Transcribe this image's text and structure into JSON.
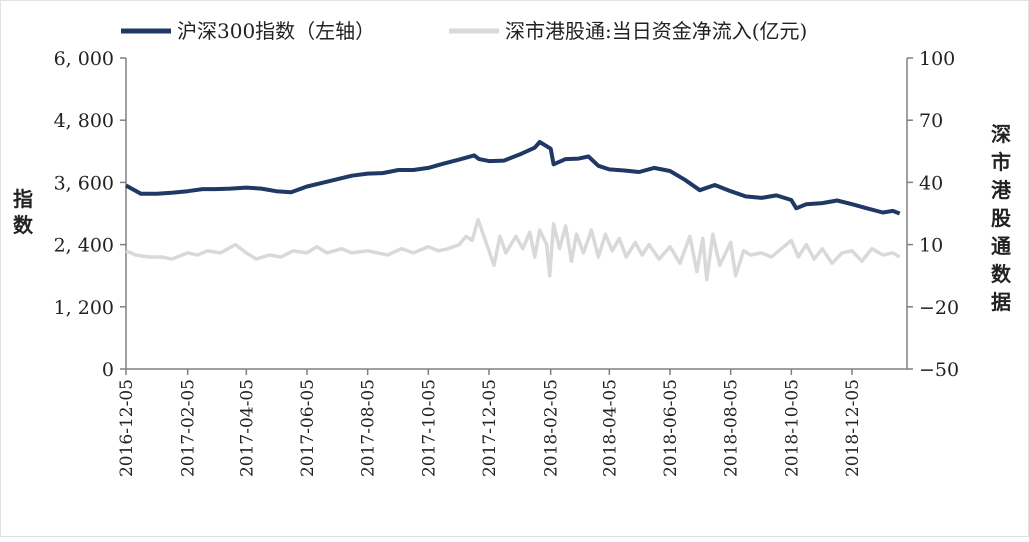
{
  "legend": {
    "series_left": "沪深300指数（左轴）",
    "series_right": "深市港股通:当日资金净流入(亿元)"
  },
  "axes": {
    "left_label": "指数",
    "right_label": "深市港股通数据"
  },
  "colors": {
    "index_line": "#1f3864",
    "flow_line": "#d9d9d9",
    "axis": "#808080"
  },
  "chart_data": {
    "type": "line",
    "title": "",
    "x_start": "2016-12-05",
    "x_end": "2019-01-22",
    "x_ticks": [
      "2016-12-05",
      "2017-02-05",
      "2017-04-05",
      "2017-06-05",
      "2017-08-05",
      "2017-10-05",
      "2017-12-05",
      "2018-02-05",
      "2018-04-05",
      "2018-06-05",
      "2018-08-05",
      "2018-10-05",
      "2018-12-05"
    ],
    "y_left": {
      "min": 0,
      "max": 6000,
      "ticks": [
        0,
        1200,
        2400,
        3600,
        4800,
        6000
      ],
      "tick_labels": [
        "0",
        "1, 200",
        "2, 400",
        "3, 600",
        "4, 800",
        "6, 000"
      ]
    },
    "y_right": {
      "min": -50,
      "max": 100,
      "ticks": [
        -50,
        -20,
        10,
        40,
        70,
        100
      ],
      "tick_labels": [
        "−50",
        "−20",
        "10",
        "40",
        "70",
        "100"
      ]
    },
    "series": [
      {
        "name": "沪深300指数（左轴）",
        "axis": "left",
        "points": [
          [
            "2016-12-05",
            3540
          ],
          [
            "2016-12-20",
            3380
          ],
          [
            "2017-01-05",
            3380
          ],
          [
            "2017-01-20",
            3400
          ],
          [
            "2017-02-05",
            3430
          ],
          [
            "2017-02-20",
            3470
          ],
          [
            "2017-03-05",
            3470
          ],
          [
            "2017-03-20",
            3480
          ],
          [
            "2017-04-05",
            3500
          ],
          [
            "2017-04-20",
            3480
          ],
          [
            "2017-05-05",
            3430
          ],
          [
            "2017-05-20",
            3410
          ],
          [
            "2017-06-05",
            3520
          ],
          [
            "2017-06-20",
            3590
          ],
          [
            "2017-07-05",
            3660
          ],
          [
            "2017-07-20",
            3730
          ],
          [
            "2017-08-05",
            3770
          ],
          [
            "2017-08-20",
            3780
          ],
          [
            "2017-09-05",
            3840
          ],
          [
            "2017-09-20",
            3840
          ],
          [
            "2017-10-05",
            3880
          ],
          [
            "2017-10-20",
            3960
          ],
          [
            "2017-11-05",
            4040
          ],
          [
            "2017-11-20",
            4120
          ],
          [
            "2017-11-25",
            4050
          ],
          [
            "2017-12-05",
            4010
          ],
          [
            "2017-12-20",
            4020
          ],
          [
            "2018-01-05",
            4140
          ],
          [
            "2018-01-20",
            4270
          ],
          [
            "2018-01-25",
            4380
          ],
          [
            "2018-02-05",
            4250
          ],
          [
            "2018-02-08",
            3950
          ],
          [
            "2018-02-20",
            4050
          ],
          [
            "2018-03-05",
            4060
          ],
          [
            "2018-03-15",
            4100
          ],
          [
            "2018-03-25",
            3920
          ],
          [
            "2018-04-05",
            3850
          ],
          [
            "2018-04-20",
            3830
          ],
          [
            "2018-05-05",
            3800
          ],
          [
            "2018-05-20",
            3880
          ],
          [
            "2018-06-05",
            3820
          ],
          [
            "2018-06-20",
            3650
          ],
          [
            "2018-07-05",
            3450
          ],
          [
            "2018-07-20",
            3550
          ],
          [
            "2018-08-05",
            3430
          ],
          [
            "2018-08-20",
            3330
          ],
          [
            "2018-09-05",
            3300
          ],
          [
            "2018-09-20",
            3350
          ],
          [
            "2018-10-05",
            3260
          ],
          [
            "2018-10-10",
            3100
          ],
          [
            "2018-10-20",
            3180
          ],
          [
            "2018-11-05",
            3200
          ],
          [
            "2018-11-20",
            3250
          ],
          [
            "2018-12-05",
            3180
          ],
          [
            "2018-12-20",
            3100
          ],
          [
            "2019-01-05",
            3020
          ],
          [
            "2019-01-15",
            3050
          ],
          [
            "2019-01-22",
            3000
          ]
        ]
      },
      {
        "name": "深市港股通:当日资金净流入(亿元)",
        "axis": "right",
        "points": [
          [
            "2016-12-05",
            7
          ],
          [
            "2016-12-15",
            5
          ],
          [
            "2016-12-28",
            4
          ],
          [
            "2017-01-10",
            4
          ],
          [
            "2017-01-20",
            3
          ],
          [
            "2017-02-05",
            6
          ],
          [
            "2017-02-15",
            5
          ],
          [
            "2017-02-25",
            7
          ],
          [
            "2017-03-10",
            6
          ],
          [
            "2017-03-25",
            10
          ],
          [
            "2017-04-05",
            6
          ],
          [
            "2017-04-15",
            3
          ],
          [
            "2017-04-28",
            5
          ],
          [
            "2017-05-10",
            4
          ],
          [
            "2017-05-22",
            7
          ],
          [
            "2017-06-05",
            6
          ],
          [
            "2017-06-15",
            9
          ],
          [
            "2017-06-25",
            6
          ],
          [
            "2017-07-10",
            8
          ],
          [
            "2017-07-20",
            6
          ],
          [
            "2017-08-05",
            7
          ],
          [
            "2017-08-15",
            6
          ],
          [
            "2017-08-25",
            5
          ],
          [
            "2017-09-08",
            8
          ],
          [
            "2017-09-20",
            6
          ],
          [
            "2017-10-05",
            9
          ],
          [
            "2017-10-15",
            7
          ],
          [
            "2017-10-25",
            8
          ],
          [
            "2017-11-05",
            10
          ],
          [
            "2017-11-12",
            14
          ],
          [
            "2017-11-18",
            12
          ],
          [
            "2017-11-24",
            22
          ],
          [
            "2017-12-05",
            7
          ],
          [
            "2017-12-10",
            0
          ],
          [
            "2017-12-16",
            14
          ],
          [
            "2017-12-22",
            6
          ],
          [
            "2018-01-01",
            14
          ],
          [
            "2018-01-08",
            8
          ],
          [
            "2018-01-15",
            16
          ],
          [
            "2018-01-20",
            4
          ],
          [
            "2018-01-25",
            17
          ],
          [
            "2018-02-01",
            10
          ],
          [
            "2018-02-04",
            -5
          ],
          [
            "2018-02-08",
            20
          ],
          [
            "2018-02-14",
            8
          ],
          [
            "2018-02-20",
            19
          ],
          [
            "2018-02-26",
            2
          ],
          [
            "2018-03-03",
            15
          ],
          [
            "2018-03-10",
            6
          ],
          [
            "2018-03-18",
            17
          ],
          [
            "2018-03-25",
            4
          ],
          [
            "2018-04-01",
            15
          ],
          [
            "2018-04-08",
            7
          ],
          [
            "2018-04-15",
            13
          ],
          [
            "2018-04-22",
            4
          ],
          [
            "2018-05-01",
            11
          ],
          [
            "2018-05-08",
            5
          ],
          [
            "2018-05-15",
            10
          ],
          [
            "2018-05-25",
            3
          ],
          [
            "2018-06-05",
            9
          ],
          [
            "2018-06-15",
            1
          ],
          [
            "2018-06-25",
            14
          ],
          [
            "2018-07-02",
            -3
          ],
          [
            "2018-07-08",
            13
          ],
          [
            "2018-07-12",
            -7
          ],
          [
            "2018-07-18",
            15
          ],
          [
            "2018-07-25",
            0
          ],
          [
            "2018-08-05",
            11
          ],
          [
            "2018-08-10",
            -5
          ],
          [
            "2018-08-18",
            7
          ],
          [
            "2018-08-25",
            5
          ],
          [
            "2018-09-05",
            6
          ],
          [
            "2018-09-15",
            4
          ],
          [
            "2018-09-25",
            8
          ],
          [
            "2018-10-05",
            12
          ],
          [
            "2018-10-12",
            4
          ],
          [
            "2018-10-20",
            10
          ],
          [
            "2018-10-28",
            3
          ],
          [
            "2018-11-05",
            8
          ],
          [
            "2018-11-15",
            1
          ],
          [
            "2018-11-25",
            6
          ],
          [
            "2018-12-05",
            7
          ],
          [
            "2018-12-15",
            2
          ],
          [
            "2018-12-25",
            8
          ],
          [
            "2019-01-05",
            5
          ],
          [
            "2019-01-15",
            6
          ],
          [
            "2019-01-22",
            4
          ]
        ]
      }
    ]
  }
}
